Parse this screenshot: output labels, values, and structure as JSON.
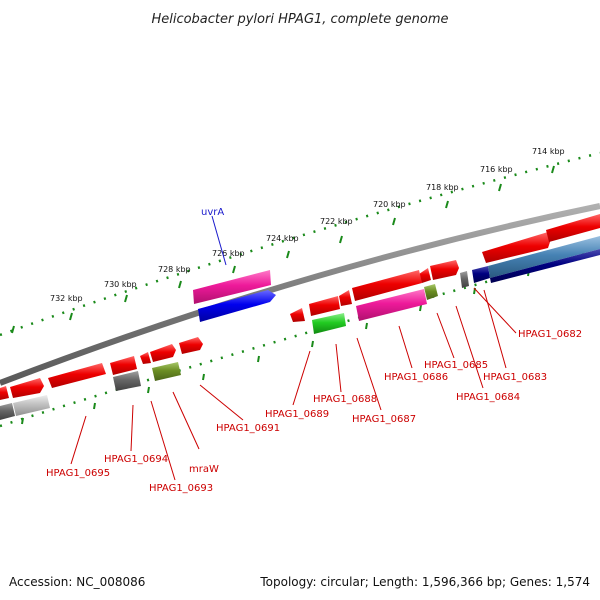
{
  "title": "Helicobacter pylori HPAG1, complete genome",
  "footer": {
    "accession": "Accession: NC_008086",
    "topology": "Topology: circular; Length: 1,596,366 bp; Genes: 1,574"
  },
  "ticks": [
    "714 kbp",
    "716 kbp",
    "718 kbp",
    "720 kbp",
    "722 kbp",
    "724 kbp",
    "726 kbp",
    "728 kbp",
    "730 kbp",
    "732 kbp"
  ],
  "genes": [
    "uvrA",
    "HPAG1_0682",
    "HPAG1_0683",
    "HPAG1_0684",
    "HPAG1_0685",
    "HPAG1_0686",
    "HPAG1_0687",
    "HPAG1_0688",
    "HPAG1_0689",
    "HPAG1_0691",
    "mraW",
    "HPAG1_0693",
    "HPAG1_0694",
    "HPAG1_0695"
  ],
  "colors": {
    "backbone": "#808080",
    "tick": "#1a8a1a",
    "cds": "#ee0000",
    "pink": "#ee1a9a",
    "blue": "#0000ee",
    "navy": "#000080",
    "steelblue": "#4682b4",
    "green": "#22cc22",
    "olive": "#6b8e23",
    "gray": "#666666",
    "lightgray": "#c0c0c0",
    "label_red": "#cc0000",
    "label_blue": "#1a1acc"
  }
}
